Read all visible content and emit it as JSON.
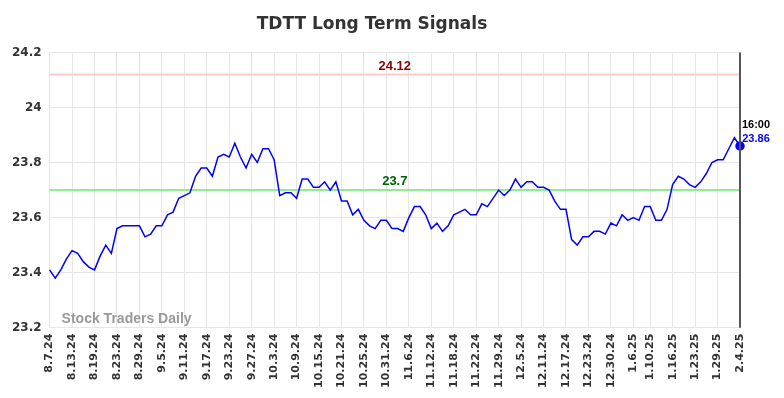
{
  "chart_data": {
    "type": "line",
    "title": "TDTT Long Term Signals",
    "watermark": "Stock Traders Daily",
    "color": "#0000ff",
    "grid": true,
    "legend": false,
    "ylim": [
      23.2,
      24.2
    ],
    "yticks": [
      23.2,
      23.4,
      23.6,
      23.8,
      24,
      24.2
    ],
    "categories": [
      "8.7.24",
      null,
      null,
      null,
      "8.13.24",
      null,
      null,
      null,
      "8.19.24",
      null,
      null,
      null,
      "8.23.24",
      null,
      null,
      null,
      "8.29.24",
      null,
      null,
      null,
      "9.5.24",
      null,
      null,
      null,
      "9.11.24",
      null,
      null,
      null,
      "9.17.24",
      null,
      null,
      null,
      "9.23.24",
      null,
      null,
      null,
      "9.27.24",
      null,
      null,
      null,
      "10.3.24",
      null,
      null,
      null,
      "10.9.24",
      null,
      null,
      null,
      "10.15.24",
      null,
      null,
      null,
      "10.21.24",
      null,
      null,
      null,
      "10.25.24",
      null,
      null,
      null,
      "10.31.24",
      null,
      null,
      null,
      "11.6.24",
      null,
      null,
      null,
      "11.12.24",
      null,
      null,
      null,
      "11.18.24",
      null,
      null,
      null,
      "11.22.24",
      null,
      null,
      null,
      "11.29.24",
      null,
      null,
      null,
      "12.5.24",
      null,
      null,
      null,
      "12.11.24",
      null,
      null,
      null,
      "12.17.24",
      null,
      null,
      null,
      "12.23.24",
      null,
      null,
      null,
      "12.30.24",
      null,
      null,
      null,
      "1.6.25",
      null,
      null,
      "1.10.25",
      null,
      null,
      null,
      "1.16.25",
      null,
      null,
      null,
      "1.23.25",
      null,
      null,
      null,
      "1.29.25",
      null,
      null,
      null,
      "2.4.25"
    ],
    "values": [
      23.41,
      23.38,
      23.41,
      23.45,
      23.48,
      23.47,
      23.44,
      23.42,
      23.41,
      23.46,
      23.5,
      23.47,
      23.56,
      23.57,
      23.57,
      23.57,
      23.57,
      23.53,
      23.54,
      23.57,
      23.57,
      23.61,
      23.62,
      23.67,
      23.68,
      23.69,
      23.75,
      23.78,
      23.78,
      23.75,
      23.82,
      23.83,
      23.82,
      23.87,
      23.82,
      23.78,
      23.83,
      23.8,
      23.85,
      23.85,
      23.81,
      23.68,
      23.69,
      23.69,
      23.67,
      23.74,
      23.74,
      23.71,
      23.71,
      23.73,
      23.7,
      23.73,
      23.66,
      23.66,
      23.61,
      23.63,
      23.59,
      23.57,
      23.56,
      23.59,
      23.59,
      23.56,
      23.56,
      23.55,
      23.6,
      23.64,
      23.64,
      23.61,
      23.56,
      23.58,
      23.55,
      23.57,
      23.61,
      23.62,
      23.63,
      23.61,
      23.61,
      23.65,
      23.64,
      23.67,
      23.7,
      23.68,
      23.7,
      23.74,
      23.71,
      23.73,
      23.73,
      23.71,
      23.71,
      23.7,
      23.66,
      23.63,
      23.63,
      23.52,
      23.5,
      23.53,
      23.53,
      23.55,
      23.55,
      23.54,
      23.58,
      23.57,
      23.61,
      23.59,
      23.6,
      23.59,
      23.64,
      23.64,
      23.59,
      23.59,
      23.63,
      23.72,
      23.75,
      23.74,
      23.72,
      23.71,
      23.73,
      23.76,
      23.8,
      23.81,
      23.81,
      23.85,
      23.89,
      23.86
    ],
    "last_point": {
      "time": "16:00",
      "value": 23.86
    },
    "horizontal_lines": [
      {
        "value": 24.12,
        "color": "#ffcccc",
        "label_color": "#8b0000"
      },
      {
        "value": 23.7,
        "color": "#90ee90",
        "label_color": "#006400"
      }
    ]
  }
}
